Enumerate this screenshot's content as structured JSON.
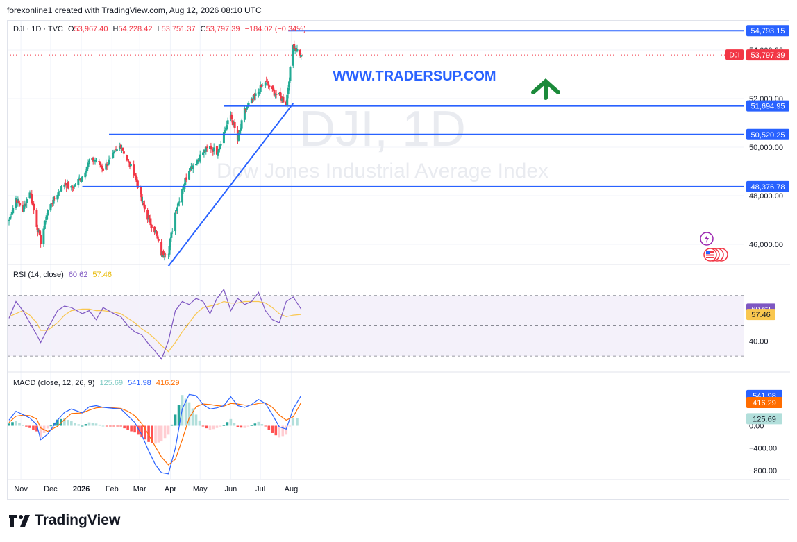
{
  "header": {
    "credit": "forexonline1 created with TradingView.com, Aug 12, 2026 08:10 UTC"
  },
  "footer": {
    "brand": "TradingView"
  },
  "colors": {
    "up": "#22ab94",
    "down": "#f23645",
    "blue_line": "#2962ff",
    "rsi": "#7e57c2",
    "rsi_ma": "#f9c74f",
    "macd": "#2962ff",
    "signal": "#ff6d00",
    "watermark_url": "#2962ff"
  },
  "main_legend": {
    "symbol": "DJI · 1D · TVC",
    "o_label": "O",
    "o_value": "53,967.40",
    "h_label": "H",
    "h_value": "54,228.42",
    "l_label": "L",
    "l_value": "53,751.37",
    "c_label": "C",
    "c_value": "53,797.39",
    "change": "−184.02 (−0.34%)"
  },
  "rsi_legend": {
    "label": "RSI (14, close)",
    "value1": "60.62",
    "value2": "57.46"
  },
  "macd_legend": {
    "label": "MACD (close, 12, 26, 9)",
    "hist": "125.69",
    "macd": "541.98",
    "signal": "416.29"
  },
  "watermark": {
    "symbol": "DJI, 1D",
    "name": "Dow Jones Industrial Average Index",
    "url": "WWW.TRADERSUP.COM"
  },
  "icons": {
    "arrow": "up-arrow-icon",
    "lightning": "lightning-icon",
    "flag": "us-flag-icon",
    "logo": "tradingview-logo-icon"
  },
  "chart_data": {
    "type": "candlestick",
    "symbol": "DJI",
    "x_tick_labels": [
      "Nov",
      "Dec",
      "2026",
      "Feb",
      "Mar",
      "Apr",
      "May",
      "Jun",
      "Jul",
      "Aug"
    ],
    "price_axis": {
      "ylim": [
        45200,
        55200
      ],
      "ticks": [
        "46,000.00",
        "48,000.00",
        "50,000.00",
        "52,000.00",
        "54,000.00"
      ]
    },
    "price_badges": [
      {
        "label": "54,793.15",
        "value": 54793.15
      },
      {
        "label": "53,797.39",
        "value": 53797.39,
        "tag": "DJI"
      },
      {
        "label": "51,694.95",
        "value": 51694.95
      },
      {
        "label": "50,520.25",
        "value": 50520.25
      },
      {
        "label": "48,376.78",
        "value": 48376.78
      }
    ],
    "horizontal_levels": [
      {
        "value": 54793.15,
        "from": "2026-07-29",
        "to": "2026-08-26"
      },
      {
        "value": 51694.95,
        "from": "2026-05-25",
        "to": "2026-08-26"
      },
      {
        "value": 50520.25,
        "from": "2026-01-29",
        "to": "2026-08-26"
      },
      {
        "value": 48376.78,
        "from": "2026-01-02",
        "to": "2026-08-26"
      }
    ],
    "trendline": {
      "from": {
        "date": "2026-03-30",
        "value": 45100
      },
      "to": {
        "date": "2026-08-03",
        "value": 51800
      }
    },
    "close_anchors": [
      {
        "date": "2025-10-20",
        "close": 47000
      },
      {
        "date": "2025-10-27",
        "close": 47900
      },
      {
        "date": "2025-11-03",
        "close": 47400
      },
      {
        "date": "2025-11-10",
        "close": 48200
      },
      {
        "date": "2025-11-17",
        "close": 46800
      },
      {
        "date": "2025-11-21",
        "close": 46100
      },
      {
        "date": "2025-11-28",
        "close": 47400
      },
      {
        "date": "2025-12-08",
        "close": 48100
      },
      {
        "date": "2025-12-15",
        "close": 48500
      },
      {
        "date": "2025-12-22",
        "close": 48300
      },
      {
        "date": "2026-01-02",
        "close": 48800
      },
      {
        "date": "2026-01-09",
        "close": 49400
      },
      {
        "date": "2026-01-16",
        "close": 49500
      },
      {
        "date": "2026-01-23",
        "close": 49100
      },
      {
        "date": "2026-02-03",
        "close": 49700
      },
      {
        "date": "2026-02-10",
        "close": 50100
      },
      {
        "date": "2026-02-17",
        "close": 49400
      },
      {
        "date": "2026-02-24",
        "close": 48900
      },
      {
        "date": "2026-03-03",
        "close": 47800
      },
      {
        "date": "2026-03-10",
        "close": 47000
      },
      {
        "date": "2026-03-17",
        "close": 46500
      },
      {
        "date": "2026-03-23",
        "close": 45600
      },
      {
        "date": "2026-03-30",
        "close": 45700
      },
      {
        "date": "2026-04-06",
        "close": 47300
      },
      {
        "date": "2026-04-13",
        "close": 48300
      },
      {
        "date": "2026-04-20",
        "close": 49100
      },
      {
        "date": "2026-04-27",
        "close": 49400
      },
      {
        "date": "2026-05-04",
        "close": 49800
      },
      {
        "date": "2026-05-11",
        "close": 50000
      },
      {
        "date": "2026-05-18",
        "close": 49800
      },
      {
        "date": "2026-05-25",
        "close": 50600
      },
      {
        "date": "2026-06-01",
        "close": 51300
      },
      {
        "date": "2026-06-08",
        "close": 50300
      },
      {
        "date": "2026-06-15",
        "close": 51500
      },
      {
        "date": "2026-06-22",
        "close": 51900
      },
      {
        "date": "2026-06-29",
        "close": 52300
      },
      {
        "date": "2026-07-06",
        "close": 52700
      },
      {
        "date": "2026-07-13",
        "close": 52300
      },
      {
        "date": "2026-07-20",
        "close": 52100
      },
      {
        "date": "2026-07-27",
        "close": 51800
      },
      {
        "date": "2026-08-03",
        "close": 54200
      },
      {
        "date": "2026-08-11",
        "close": 53797.39
      }
    ],
    "rsi": {
      "ylim": [
        20,
        90
      ],
      "ticks": [
        "40.00"
      ],
      "bands": [
        30,
        50,
        70
      ],
      "series": [
        {
          "name": "RSI",
          "values": [
            55,
            66,
            60,
            52,
            44,
            39,
            48,
            60,
            63,
            62,
            58,
            60,
            54,
            62,
            58,
            56,
            50,
            46,
            44,
            38,
            33,
            28,
            40,
            60,
            66,
            64,
            68,
            66,
            58,
            68,
            74,
            60,
            68,
            64,
            66,
            72,
            60,
            54,
            52,
            66,
            69,
            61
          ]
        },
        {
          "name": "RSI MA",
          "values": [
            56,
            58,
            60,
            57,
            52,
            47,
            47,
            52,
            57,
            60,
            61,
            61,
            60,
            60,
            59,
            58,
            55,
            52,
            48,
            45,
            41,
            37,
            33,
            39,
            46,
            52,
            58,
            62,
            63,
            64,
            66,
            65,
            65,
            66,
            66,
            66,
            65,
            62,
            58,
            56,
            57,
            57.46
          ]
        }
      ]
    },
    "macd": {
      "ylim": [
        -950,
        950
      ],
      "ticks": [
        "400.00",
        "0.00",
        "−400.00",
        "−800.00"
      ],
      "series": [
        {
          "name": "MACD",
          "values": [
            100,
            260,
            200,
            140,
            20,
            -250,
            -150,
            100,
            240,
            300,
            230,
            340,
            360,
            330,
            310,
            300,
            180,
            60,
            -160,
            -450,
            -700,
            -840,
            -860,
            -400,
            300,
            560,
            540,
            380,
            300,
            320,
            360,
            520,
            360,
            330,
            380,
            470,
            400,
            200,
            -20,
            -60,
            300,
            541.98
          ]
        },
        {
          "name": "Signal",
          "values": [
            60,
            170,
            190,
            180,
            120,
            -40,
            -100,
            -10,
            110,
            220,
            230,
            280,
            320,
            330,
            320,
            310,
            260,
            180,
            40,
            -160,
            -380,
            -560,
            -700,
            -600,
            -250,
            140,
            340,
            390,
            380,
            360,
            350,
            400,
            390,
            370,
            370,
            400,
            410,
            330,
            190,
            100,
            160,
            416.29
          ]
        },
        {
          "name": "Histogram",
          "values": [
            40,
            90,
            10,
            -40,
            -100,
            -210,
            -50,
            110,
            130,
            80,
            0,
            60,
            40,
            0,
            -10,
            -10,
            -80,
            -120,
            -200,
            -290,
            -320,
            -280,
            -160,
            200,
            550,
            420,
            200,
            -10,
            -80,
            -40,
            10,
            120,
            -30,
            -40,
            10,
            70,
            -10,
            -130,
            -210,
            -160,
            140,
            125.69
          ]
        }
      ]
    }
  }
}
